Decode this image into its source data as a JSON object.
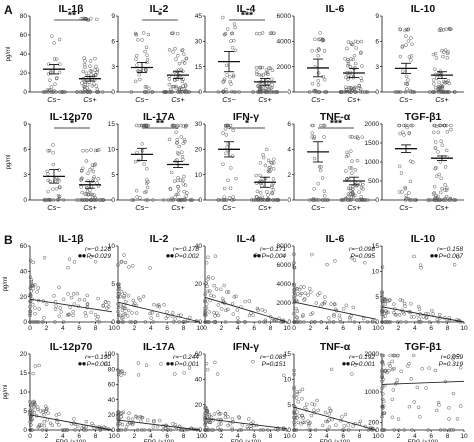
{
  "panel_labels": [
    "A",
    "B"
  ],
  "chart_data": [
    {
      "panel": "A",
      "type": "scatter",
      "subtype": "dot-plot with mean and SEM",
      "categories": [
        "Cs−",
        "Cs+"
      ],
      "panels": [
        {
          "title": "IL-1β",
          "ylabel": "pg/ml",
          "ylim": [
            0,
            80
          ],
          "yticks": [
            "0",
            "20",
            "40",
            "60",
            "80"
          ],
          "sig": "**",
          "mean": [
            24,
            14
          ],
          "sem": [
            5,
            2.5
          ],
          "cap": [
            78,
            78
          ]
        },
        {
          "title": "IL-2",
          "ylabel": "",
          "ylim": [
            0,
            9
          ],
          "yticks": [
            "0",
            "3",
            "6",
            "9"
          ],
          "sig": "*",
          "mean": [
            2.9,
            2.0
          ],
          "sem": [
            0.6,
            0.4
          ],
          "cap": [
            7,
            7
          ]
        },
        {
          "title": "IL-4",
          "ylabel": "",
          "ylim": [
            0,
            45
          ],
          "yticks": [
            "0",
            "15",
            "30",
            "45"
          ],
          "sig": "***",
          "mean": [
            18,
            6
          ],
          "sem": [
            6,
            2
          ],
          "cap": [
            35,
            35
          ]
        },
        {
          "title": "IL-6",
          "ylabel": "",
          "ylim": [
            0,
            6000
          ],
          "yticks": [
            "0",
            "2000",
            "4000",
            "6000"
          ],
          "sig": "",
          "mean": [
            1900,
            1500
          ],
          "sem": [
            700,
            350
          ],
          "cap": [
            4200,
            4000
          ]
        },
        {
          "title": "IL-10",
          "ylabel": "",
          "ylim": [
            0,
            9
          ],
          "yticks": [
            "0",
            "3",
            "6",
            "9"
          ],
          "sig": "",
          "mean": [
            2.8,
            2.0
          ],
          "sem": [
            0.6,
            0.4
          ],
          "cap": [
            7.5,
            7.5
          ]
        },
        {
          "title": "IL-12p70",
          "ylabel": "pg/ml",
          "ylim": [
            0,
            9
          ],
          "yticks": [
            "0",
            "3",
            "6",
            "9"
          ],
          "sig": "*",
          "mean": [
            2.8,
            1.8
          ],
          "sem": [
            0.8,
            0.4
          ],
          "cap": [
            6,
            6
          ]
        },
        {
          "title": "IL-17A",
          "ylabel": "",
          "ylim": [
            0,
            15
          ],
          "yticks": [
            "0",
            "5",
            "10",
            "15"
          ],
          "sig": "**",
          "mean": [
            9,
            7
          ],
          "sem": [
            1.2,
            0.6
          ],
          "cap": [
            15,
            15
          ]
        },
        {
          "title": "IFN-γ",
          "ylabel": "",
          "ylim": [
            0,
            30
          ],
          "yticks": [
            "0",
            "10",
            "20",
            "30"
          ],
          "sig": "*",
          "mean": [
            20,
            7
          ],
          "sem": [
            3,
            2
          ],
          "cap": [
            20,
            20
          ]
        },
        {
          "title": "TNF-α",
          "ylabel": "",
          "ylim": [
            0,
            6
          ],
          "yticks": [
            "0",
            "2",
            "4",
            "6"
          ],
          "sig": "***",
          "mean": [
            3.8,
            1.5
          ],
          "sem": [
            0.8,
            0.3
          ],
          "cap": [
            5,
            5
          ]
        },
        {
          "title": "TGF-β1",
          "ylabel": "",
          "ylim": [
            0,
            2000
          ],
          "yticks": [
            "0",
            "500",
            "1000",
            "1500",
            "2000"
          ],
          "sig": "",
          "mean": [
            1350,
            1100
          ],
          "sem": [
            100,
            60
          ],
          "cap": [
            1800,
            1800
          ]
        }
      ]
    },
    {
      "panel": "B",
      "type": "scatter",
      "subtype": "correlation with linear fit",
      "xlim": [
        0,
        10
      ],
      "xticks": [
        "0",
        "2",
        "4",
        "6",
        "8",
        "10"
      ],
      "panels": [
        {
          "title": "IL-1β",
          "ylabel": "pg/ml",
          "xlabel": "",
          "ylim": [
            0,
            60
          ],
          "yticks": [
            "0",
            "20",
            "40",
            "60"
          ],
          "r": "r=−0.128",
          "p": "P=0.029",
          "fit_y0": 18,
          "fit_y10": 8,
          "marker": true
        },
        {
          "title": "IL-2",
          "ylabel": "",
          "xlabel": "",
          "ylim": [
            0,
            10
          ],
          "yticks": [
            "0",
            "5",
            "10"
          ],
          "r": "r=−0.178",
          "p": "P=0.002",
          "fit_y0": 2.6,
          "fit_y10": 0,
          "marker": true
        },
        {
          "title": "IL-4",
          "ylabel": "",
          "xlabel": "",
          "ylim": [
            0,
            40
          ],
          "yticks": [
            "0",
            "20",
            "40"
          ],
          "r": "r=−0.171",
          "p": "P=0.004",
          "fit_y0": 13,
          "fit_y10": 0,
          "marker": true
        },
        {
          "title": "IL-6",
          "ylabel": "",
          "xlabel": "",
          "ylim": [
            0,
            8000
          ],
          "yticks": [
            "0",
            "2000",
            "4000",
            "6000",
            "8000"
          ],
          "r": "r=−0.098",
          "p": "P=0.095",
          "fit_y0": 2100,
          "fit_y10": 300,
          "marker": false
        },
        {
          "title": "IL-10",
          "ylabel": "",
          "xlabel": "",
          "ylim": [
            0,
            15
          ],
          "yticks": [
            "0",
            "5",
            "10",
            "15"
          ],
          "r": "r=−0.158",
          "p": "P=0.007",
          "fit_y0": 3,
          "fit_y10": 0,
          "marker": true
        },
        {
          "title": "IL-12p70",
          "ylabel": "pg/ml",
          "xlabel": "EPG (×10³)",
          "ylim": [
            0,
            20
          ],
          "yticks": [
            "0",
            "5",
            "10",
            "15",
            "20"
          ],
          "r": "r=−0.190",
          "p": "P=0.001",
          "fit_y0": 4,
          "fit_y10": 0,
          "marker": true
        },
        {
          "title": "IL-17A",
          "ylabel": "",
          "xlabel": "EPG (×10³)",
          "ylim": [
            0,
            100
          ],
          "yticks": [
            "0",
            "20",
            "40",
            "60",
            "80",
            "100"
          ],
          "r": "r=−0.244",
          "p": "P=0.001",
          "fit_y0": 13,
          "fit_y10": 0,
          "marker": true
        },
        {
          "title": "IFN-γ",
          "ylabel": "",
          "xlabel": "EPG (×10³)",
          "ylim": [
            0,
            60
          ],
          "yticks": [
            "0",
            "20",
            "40",
            "60"
          ],
          "r": "r=−0.085",
          "p": "P=0.151",
          "fit_y0": 9,
          "fit_y10": 1,
          "marker": false
        },
        {
          "title": "TNF-α",
          "ylabel": "",
          "xlabel": "EPG (×10³)",
          "ylim": [
            0,
            15
          ],
          "yticks": [
            "0",
            "5",
            "10",
            "15"
          ],
          "r": "r=−0.192",
          "p": "P=0.001",
          "fit_y0": 4.5,
          "fit_y10": 0,
          "marker": true
        },
        {
          "title": "TGF-β1",
          "ylabel": "",
          "xlabel": "EPG (×10³)",
          "ylim": [
            0,
            2000
          ],
          "yticks": [
            "0",
            "200",
            "1000",
            "2000"
          ],
          "r": "r=0.059",
          "p": "P=0.319",
          "fit_y0": 1200,
          "fit_y10": 1280,
          "marker": false
        }
      ]
    }
  ]
}
